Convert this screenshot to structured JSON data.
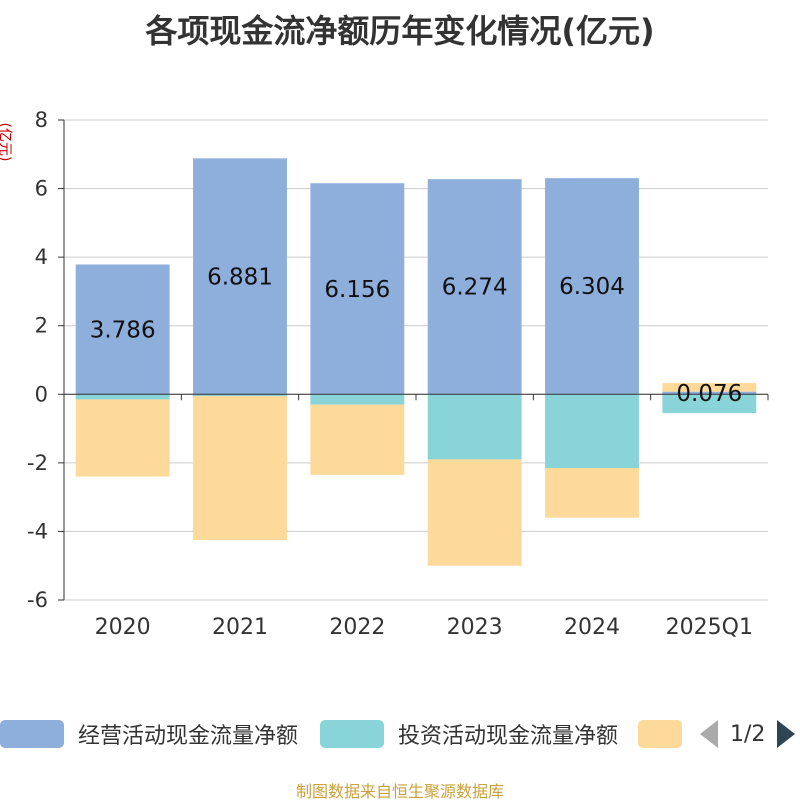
{
  "title": "各项现金流净额历年变化情况(亿元)",
  "unit_label": "(亿元)",
  "source": "制图数据来自恒生聚源数据库",
  "pager": {
    "text": "1/2"
  },
  "legend": [
    {
      "name": "经营活动现金流量净额",
      "color": "#8eaedb"
    },
    {
      "name": "投资活动现金流量净额",
      "color": "#88d4d8"
    },
    {
      "name": "",
      "color": "#fdd99a"
    }
  ],
  "chart_data": {
    "type": "bar",
    "stacked": true,
    "categories": [
      "2020",
      "2021",
      "2022",
      "2023",
      "2024",
      "2025Q1"
    ],
    "ylim": [
      -6,
      8
    ],
    "yticks": [
      -6,
      -4,
      -2,
      0,
      2,
      4,
      6,
      8
    ],
    "grid": true,
    "legend_position": "bottom",
    "series": [
      {
        "name": "经营活动现金流量净额",
        "color": "#8eaedb",
        "values": [
          3.786,
          6.881,
          6.156,
          6.274,
          6.304,
          0.076
        ],
        "labels": [
          "3.786",
          "6.881",
          "6.156",
          "6.274",
          "6.304",
          "0.076"
        ]
      },
      {
        "name": "投资活动现金流量净额",
        "color": "#88d4d8",
        "values": [
          -0.15,
          -0.05,
          -0.3,
          -1.9,
          -2.15,
          -0.55
        ]
      },
      {
        "color": "#fdd99a",
        "values": [
          -2.25,
          -4.2,
          -2.05,
          -3.1,
          -1.45,
          0.25
        ]
      }
    ]
  }
}
